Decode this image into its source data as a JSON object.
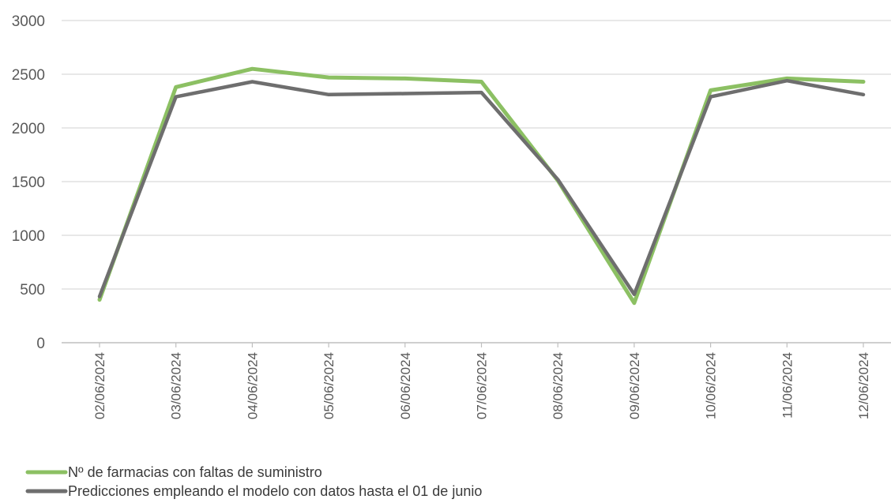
{
  "chart_data": {
    "type": "line",
    "categories": [
      "02/06/2024",
      "03/06/2024",
      "04/06/2024",
      "05/06/2024",
      "06/06/2024",
      "07/06/2024",
      "08/06/2024",
      "09/06/2024",
      "10/06/2024",
      "11/06/2024",
      "12/06/2024"
    ],
    "series": [
      {
        "name": "Nº de farmacias con faltas de suministro",
        "color": "#8cc063",
        "values": [
          400,
          2380,
          2550,
          2470,
          2460,
          2430,
          1510,
          370,
          2350,
          2460,
          2430
        ]
      },
      {
        "name": "Predicciones empleando el modelo con datos hasta el 01 de junio",
        "color": "#6e6e6e",
        "values": [
          430,
          2290,
          2430,
          2310,
          2320,
          2330,
          1520,
          450,
          2290,
          2440,
          2310
        ]
      }
    ],
    "y_ticks": [
      "0",
      "500",
      "1000",
      "1500",
      "2000",
      "2500",
      "3000"
    ],
    "ylim": [
      0,
      3000
    ],
    "grid": true,
    "legend": "bottom-left"
  }
}
